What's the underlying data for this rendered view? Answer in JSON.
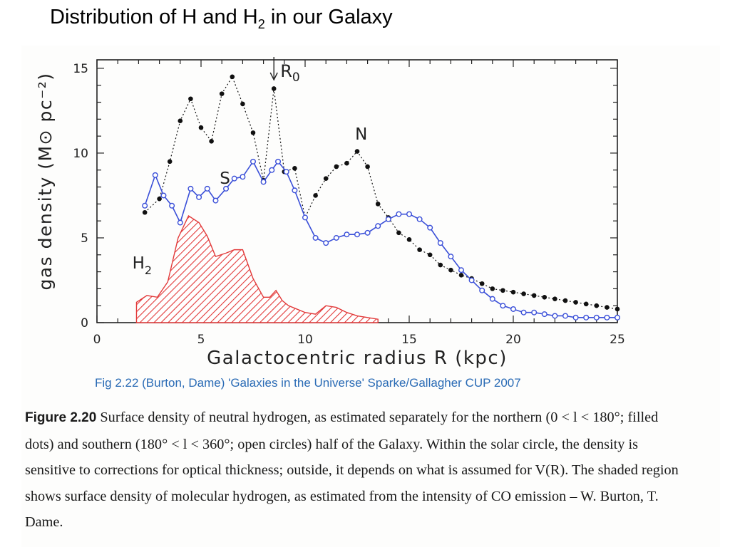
{
  "slide": {
    "title_pre": "Distribution of H and H",
    "title_sub": "2",
    "title_post": " in our Galaxy"
  },
  "credit": "Fig 2.22 (Burton, Dame) 'Galaxies in the Universe' Sparke/Gallagher CUP 2007",
  "caption": {
    "label": "Figure 2.20",
    "text": "Surface density of neutral hydrogen, as estimated separately for the northern (0 < l < 180°; filled dots) and southern (180° < l < 360°; open circles) half of the Galaxy. Within the solar circle, the density is sensitive to corrections for optical thickness; outside, it depends on what is assumed for V(R). The shaded region shows surface density of molecular hydrogen, as estimated from the intensity of CO emission – W. Burton, T. Dame."
  },
  "chart_data": {
    "type": "line",
    "xlabel": "Galactocentric radius R (kpc)",
    "ylabel": "gas density (M⊙ pc⁻²)",
    "xlim": [
      0,
      25
    ],
    "ylim": [
      0,
      15.5
    ],
    "xticks": [
      0,
      5,
      10,
      15,
      20,
      25
    ],
    "yticks": [
      0,
      5,
      10,
      15
    ],
    "marker_label": "R0",
    "marker_x": 8.5,
    "series": [
      {
        "name": "N",
        "style": "dotted-filled-dots",
        "color": "#111111",
        "label_at": [
          12.4,
          10.8
        ],
        "x": [
          2.3,
          3.0,
          3.5,
          4.0,
          4.5,
          5.0,
          5.5,
          6.0,
          6.5,
          7.0,
          7.5,
          8.0,
          8.5,
          9.0,
          9.5,
          10.0,
          10.5,
          11.0,
          11.5,
          12.0,
          12.5,
          13.0,
          13.5,
          14.0,
          14.5,
          15.0,
          15.5,
          16.0,
          16.5,
          17.0,
          17.5,
          18.0,
          18.5,
          19.0,
          19.5,
          20.0,
          20.5,
          21.0,
          21.5,
          22.0,
          22.5,
          23.0,
          23.5,
          24.0,
          24.5,
          25.0
        ],
        "y": [
          6.5,
          7.3,
          9.5,
          11.9,
          13.2,
          11.5,
          10.7,
          13.5,
          14.5,
          12.9,
          11.2,
          8.4,
          13.8,
          8.9,
          9.1,
          6.2,
          7.5,
          8.5,
          9.2,
          9.4,
          10.1,
          9.2,
          7.0,
          6.2,
          5.3,
          4.9,
          4.3,
          4.0,
          3.4,
          3.1,
          2.8,
          2.6,
          2.3,
          2.0,
          1.9,
          1.8,
          1.7,
          1.6,
          1.5,
          1.4,
          1.3,
          1.2,
          1.1,
          1.0,
          0.9,
          0.8
        ]
      },
      {
        "name": "S",
        "style": "solid-open-circles",
        "color": "#3a4fd8",
        "label_at": [
          5.9,
          8.2
        ],
        "x": [
          2.3,
          2.8,
          3.2,
          3.6,
          4.0,
          4.5,
          4.9,
          5.3,
          5.7,
          6.2,
          6.6,
          7.0,
          7.5,
          8.0,
          8.4,
          8.7,
          9.1,
          9.5,
          10.0,
          10.5,
          11.0,
          11.5,
          12.0,
          12.5,
          13.0,
          13.5,
          14.0,
          14.5,
          15.0,
          15.5,
          16.0,
          16.5,
          17.0,
          17.5,
          18.0,
          18.5,
          19.0,
          19.5,
          20.0,
          20.5,
          21.0,
          21.5,
          22.0,
          22.5,
          23.0,
          23.5,
          24.0,
          24.5,
          25.0
        ],
        "y": [
          6.9,
          8.7,
          7.5,
          6.9,
          5.9,
          7.9,
          7.4,
          7.9,
          7.2,
          7.9,
          8.5,
          8.6,
          9.5,
          8.3,
          9.0,
          9.5,
          8.9,
          7.8,
          6.2,
          5.0,
          4.7,
          5.0,
          5.2,
          5.2,
          5.3,
          5.7,
          6.1,
          6.4,
          6.4,
          6.1,
          5.6,
          4.7,
          3.9,
          3.1,
          2.5,
          1.9,
          1.4,
          1.0,
          0.8,
          0.6,
          0.6,
          0.5,
          0.4,
          0.4,
          0.3,
          0.3,
          0.3,
          0.3,
          0.3
        ]
      },
      {
        "name": "H2",
        "style": "hatched-area",
        "color": "#e23a3a",
        "label_at": [
          1.7,
          3.2
        ],
        "x": [
          1.9,
          2.4,
          2.9,
          3.4,
          3.9,
          4.4,
          4.9,
          5.3,
          5.7,
          6.2,
          6.6,
          7.0,
          7.5,
          8.0,
          8.3,
          8.6,
          8.9,
          9.2,
          9.6,
          10.0,
          10.5,
          11.0,
          11.5,
          12.0,
          12.5,
          13.0,
          13.5
        ],
        "y": [
          1.2,
          1.6,
          1.5,
          2.4,
          5.0,
          6.3,
          5.9,
          5.1,
          3.9,
          4.1,
          4.3,
          4.3,
          2.6,
          1.5,
          1.5,
          1.9,
          1.3,
          1.0,
          0.8,
          0.6,
          0.5,
          1.0,
          0.9,
          0.6,
          0.4,
          0.3,
          0.2
        ]
      }
    ]
  }
}
